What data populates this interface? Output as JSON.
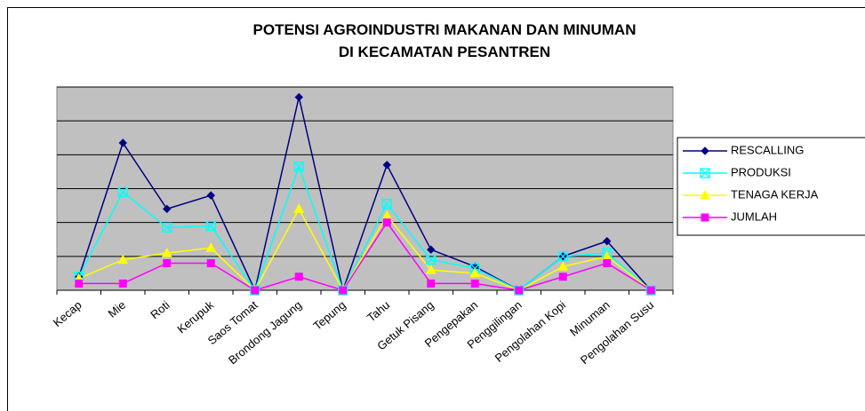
{
  "chart_data": {
    "type": "line",
    "title": [
      "POTENSI AGROINDUSTRI MAKANAN DAN MINUMAN",
      "DI KECAMATAN PESANTREN"
    ],
    "categories": [
      "Kecap",
      "Mie",
      "Roti",
      "Kerupuk",
      "Saos Tomat",
      "Brondong Jagung",
      "Tepung",
      "Tahu",
      "Getuk Pisang",
      "Pengepakan",
      "Penggilingan",
      "Pengolahan Kopi",
      "Minuman",
      "Pengolahan Susu"
    ],
    "series": [
      {
        "name": "RESCALLING",
        "color": "#000080",
        "marker": "diamond",
        "values": [
          0.4,
          4.35,
          2.4,
          2.8,
          0,
          5.7,
          0,
          3.7,
          1.2,
          0.7,
          0,
          1.0,
          1.45,
          0
        ]
      },
      {
        "name": "PRODUKSI",
        "color": "#00ffff",
        "marker": "xsquare",
        "values": [
          0.4,
          2.9,
          1.85,
          1.9,
          0,
          3.65,
          0,
          2.55,
          0.9,
          0.65,
          0,
          1.0,
          1.1,
          0
        ]
      },
      {
        "name": "TENAGA KERJA",
        "color": "#ffff00",
        "marker": "triangle",
        "values": [
          0.35,
          0.9,
          1.1,
          1.25,
          0,
          2.4,
          0,
          2.2,
          0.6,
          0.5,
          0,
          0.7,
          1.0,
          0
        ]
      },
      {
        "name": "JUMLAH",
        "color": "#ff00ff",
        "marker": "square",
        "values": [
          0.2,
          0.2,
          0.8,
          0.8,
          0,
          0.4,
          0,
          2.0,
          0.2,
          0.2,
          0,
          0.4,
          0.8,
          0
        ]
      }
    ],
    "ylim": [
      0,
      6
    ],
    "yticks": [
      0,
      1,
      2,
      3,
      4,
      5,
      6
    ],
    "grid": true,
    "legend": "right",
    "plot_background": "#c0c0c0"
  }
}
